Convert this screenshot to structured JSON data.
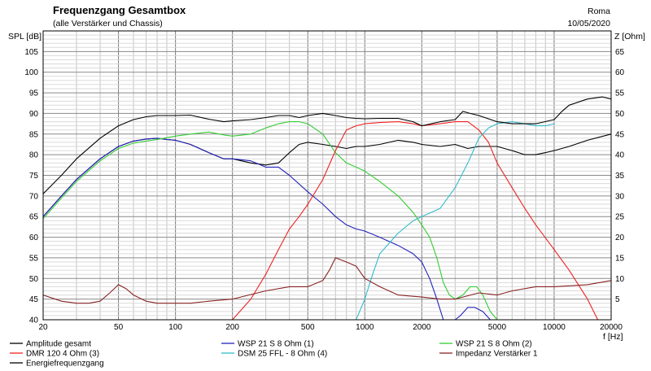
{
  "chart_data": {
    "type": "line",
    "title": "Frequenzgang Gesamtbox",
    "subtitle": "(alle Verstärker und Chassis)",
    "location": "Roma",
    "date": "10/05/2020",
    "ylabel_left": "SPL [dB]",
    "ylabel_right": "Z [Ohm]",
    "xlabel": "f [Hz]",
    "xscale": "log",
    "xlim": [
      20,
      20000
    ],
    "ylim_left": [
      40,
      110
    ],
    "ylim_right": [
      0,
      70
    ],
    "grid": true,
    "x_ticks": [
      {
        "value": 20,
        "label": "20"
      },
      {
        "value": 50,
        "label": "50"
      },
      {
        "value": 100,
        "label": "100"
      },
      {
        "value": 200,
        "label": "200"
      },
      {
        "value": 500,
        "label": "500"
      },
      {
        "value": 1000,
        "label": "1000"
      },
      {
        "value": 2000,
        "label": "2000"
      },
      {
        "value": 5000,
        "label": "5000"
      },
      {
        "value": 10000,
        "label": "10000"
      },
      {
        "value": 20000,
        "label": "20000"
      }
    ],
    "y_ticks_left": [
      "40",
      "45",
      "50",
      "55",
      "60",
      "65",
      "70",
      "75",
      "80",
      "85",
      "90",
      "95",
      "100",
      "105"
    ],
    "y_ticks_right": [
      "5",
      "10",
      "15",
      "20",
      "25",
      "30",
      "35",
      "40",
      "45",
      "50",
      "55",
      "60",
      "65"
    ],
    "legend_position": "bottom",
    "series": [
      {
        "name": "Amplitude gesamt",
        "color": "#000000",
        "axis": "left",
        "x": [
          20,
          25,
          30,
          40,
          50,
          60,
          70,
          80,
          90,
          100,
          120,
          150,
          180,
          200,
          250,
          300,
          350,
          400,
          450,
          500,
          600,
          700,
          800,
          900,
          1000,
          1200,
          1500,
          1800,
          2000,
          2500,
          3000,
          3500,
          4000,
          5000,
          6000,
          7000,
          8000,
          9000,
          10000,
          12000,
          15000,
          20000
        ],
        "y": [
          65,
          70,
          74,
          79,
          82,
          83.3,
          83.8,
          84,
          83.7,
          83.5,
          82.5,
          80.5,
          79,
          79,
          78,
          77.5,
          78,
          80.5,
          82.5,
          83,
          82.5,
          82,
          81.5,
          82,
          82,
          82.5,
          83.5,
          83,
          82.5,
          82,
          82.5,
          81.5,
          82,
          82,
          81,
          80,
          80,
          80.5,
          81,
          82,
          83.5,
          85
        ]
      },
      {
        "name": "WSP 21 S 8 Ohm (1)",
        "color": "#2222bb",
        "axis": "left",
        "x": [
          20,
          25,
          30,
          40,
          50,
          60,
          70,
          80,
          90,
          100,
          120,
          150,
          180,
          200,
          250,
          300,
          350,
          400,
          500,
          600,
          700,
          800,
          900,
          1000,
          1200,
          1500,
          1800,
          2000,
          2200,
          2400,
          2600,
          2800,
          3000,
          3200,
          3500,
          3800,
          4200,
          4600
        ],
        "y": [
          65,
          70,
          74,
          79,
          82,
          83.3,
          83.8,
          84,
          83.7,
          83.5,
          82.5,
          80.5,
          79,
          79,
          78.5,
          77,
          77,
          75,
          71,
          68,
          65,
          63,
          62,
          61.5,
          60,
          58,
          56,
          54,
          50,
          45,
          40,
          40,
          40,
          41,
          43,
          43,
          42,
          40
        ]
      },
      {
        "name": "WSP 21 S 8 Ohm (2)",
        "color": "#33cc33",
        "axis": "left",
        "x": [
          20,
          25,
          30,
          40,
          50,
          60,
          70,
          80,
          100,
          120,
          150,
          180,
          200,
          250,
          300,
          350,
          400,
          450,
          500,
          600,
          700,
          800,
          900,
          1000,
          1200,
          1500,
          1800,
          2000,
          2200,
          2400,
          2600,
          2800,
          3000,
          3300,
          3600,
          3900,
          4200,
          4600,
          5000
        ],
        "y": [
          64.5,
          69.5,
          73.5,
          78.5,
          81.5,
          82.8,
          83.3,
          83.7,
          84.5,
          85,
          85.5,
          84.8,
          84.5,
          85,
          86.5,
          87.5,
          88,
          88,
          87.5,
          85,
          80.5,
          78,
          77,
          76,
          73.5,
          70,
          66,
          63,
          60,
          55,
          49,
          46,
          45,
          46,
          48,
          48,
          46,
          42,
          40
        ]
      },
      {
        "name": "DMR 120 4 Ohm (3)",
        "color": "#ee2222",
        "axis": "left",
        "x": [
          200,
          250,
          300,
          350,
          400,
          450,
          500,
          600,
          700,
          800,
          900,
          1000,
          1200,
          1500,
          1800,
          2000,
          2500,
          3000,
          3500,
          4000,
          4500,
          5000,
          6000,
          7000,
          8000,
          10000,
          12000,
          15000,
          17000
        ],
        "y": [
          40,
          45,
          51,
          57,
          62,
          65,
          68,
          74,
          81,
          86,
          87,
          87.5,
          87.8,
          88,
          87.5,
          87,
          87.5,
          88,
          88,
          86,
          83,
          78,
          72,
          67,
          63,
          57,
          52,
          45,
          40
        ]
      },
      {
        "name": "DSM 25 FFL - 8 Ohm (4)",
        "color": "#33bbcc",
        "axis": "left",
        "x": [
          900,
          1000,
          1100,
          1200,
          1500,
          1800,
          2000,
          2500,
          3000,
          3500,
          4000,
          4500,
          5000,
          6000,
          7000,
          8000,
          9000,
          10000
        ],
        "y": [
          40,
          45,
          51,
          56,
          61,
          64,
          65,
          67,
          72,
          78,
          84,
          86.5,
          87.5,
          88,
          87.5,
          87,
          87,
          87.5
        ]
      },
      {
        "name": "Impedanz Verstärker 1",
        "color": "#882222",
        "axis": "right",
        "x": [
          20,
          25,
          30,
          35,
          40,
          45,
          50,
          55,
          60,
          70,
          80,
          100,
          120,
          150,
          200,
          300,
          400,
          500,
          600,
          650,
          700,
          800,
          900,
          1000,
          1200,
          1500,
          2000,
          2500,
          3000,
          4000,
          5000,
          6000,
          8000,
          10000,
          15000,
          20000
        ],
        "y": [
          6,
          4.5,
          4,
          4,
          4.5,
          6.5,
          8.5,
          7.5,
          6,
          4.5,
          4,
          4,
          4,
          4.5,
          5,
          7,
          8,
          8,
          9.5,
          12,
          15,
          14,
          13,
          10,
          8,
          6,
          5.5,
          5,
          5,
          6.5,
          6,
          7,
          8,
          8,
          8.5,
          9.5
        ]
      },
      {
        "name": "Energiefrequenzgang",
        "color": "#000000",
        "axis": "left",
        "x": [
          20,
          25,
          30,
          40,
          50,
          60,
          70,
          80,
          90,
          100,
          120,
          150,
          180,
          200,
          250,
          300,
          350,
          400,
          450,
          500,
          600,
          700,
          800,
          900,
          1000,
          1200,
          1500,
          1800,
          2000,
          2500,
          3000,
          3300,
          3600,
          4000,
          5000,
          6000,
          7000,
          8000,
          10000,
          11000,
          12000,
          15000,
          18000,
          20000
        ],
        "y": [
          70.5,
          75,
          79,
          84,
          87,
          88.5,
          89.2,
          89.5,
          89.5,
          89.5,
          89.6,
          88.6,
          88,
          88.2,
          88.5,
          89,
          89.5,
          89.5,
          89,
          89.5,
          90,
          89.5,
          89,
          88.8,
          88.7,
          88.8,
          88.8,
          88,
          87,
          88,
          88.5,
          90.5,
          90,
          89.5,
          88,
          87.5,
          87.5,
          87.5,
          88.5,
          90.5,
          92,
          93.5,
          94,
          93.5
        ]
      }
    ]
  }
}
